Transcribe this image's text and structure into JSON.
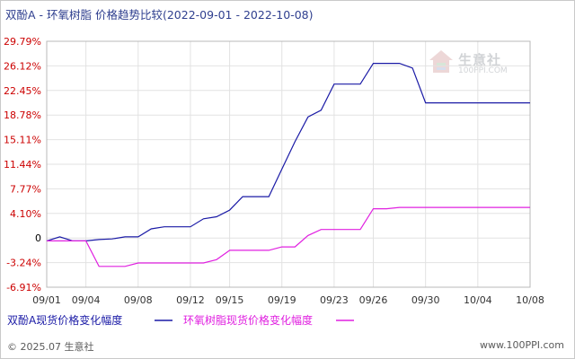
{
  "title": "双酚A - 环氧树脂 价格趋势比较(2022-09-01 - 2022-10-08)",
  "footer": {
    "copyright": "© 2025.07 生意社",
    "site": "www.100PPI.com"
  },
  "watermark": {
    "name": "生意社",
    "domain": "100PPI.COM"
  },
  "colors": {
    "series_a": "#1a1aa6",
    "series_b": "#e020e0",
    "tick_red": "#cc0000",
    "zero_black": "#000000"
  },
  "chart_data": {
    "type": "line",
    "ylabel_unit": "%",
    "y_ticks": [
      "29.79%",
      "26.12%",
      "22.45%",
      "18.78%",
      "15.11%",
      "11.44%",
      "7.77%",
      "4.10%",
      "0",
      "-3.24%",
      "-6.91%"
    ],
    "y_tick_values": [
      29.79,
      26.12,
      22.45,
      18.78,
      15.11,
      11.44,
      7.77,
      4.1,
      0.43,
      -3.24,
      -6.91
    ],
    "ylim": [
      -6.91,
      29.79
    ],
    "x_ticks": [
      "09/01",
      "09/04",
      "09/08",
      "09/12",
      "09/15",
      "09/19",
      "09/23",
      "09/26",
      "09/30",
      "10/04",
      "10/08"
    ],
    "x_tick_days": [
      1,
      4,
      8,
      12,
      15,
      19,
      23,
      26,
      30,
      34,
      38
    ],
    "xlim": [
      1,
      38
    ],
    "grid": true,
    "legend_position": "bottom",
    "series": [
      {
        "name": "双酚A现货价格变化幅度",
        "color": "#1a1aa6",
        "points": [
          [
            1,
            0.0
          ],
          [
            2,
            0.6
          ],
          [
            3,
            0.0
          ],
          [
            4,
            0.0
          ],
          [
            5,
            0.2
          ],
          [
            6,
            0.3
          ],
          [
            7,
            0.6
          ],
          [
            8,
            0.6
          ],
          [
            9,
            1.8
          ],
          [
            10,
            2.1
          ],
          [
            11,
            2.1
          ],
          [
            12,
            2.1
          ],
          [
            13,
            3.3
          ],
          [
            14,
            3.6
          ],
          [
            15,
            4.6
          ],
          [
            16,
            6.6
          ],
          [
            17,
            6.6
          ],
          [
            18,
            6.6
          ],
          [
            19,
            10.7
          ],
          [
            20,
            14.8
          ],
          [
            21,
            18.5
          ],
          [
            22,
            19.5
          ],
          [
            23,
            23.4
          ],
          [
            24,
            23.4
          ],
          [
            25,
            23.4
          ],
          [
            26,
            26.5
          ],
          [
            27,
            26.5
          ],
          [
            28,
            26.5
          ],
          [
            29,
            25.8
          ],
          [
            30,
            20.6
          ],
          [
            31,
            20.6
          ],
          [
            32,
            20.6
          ],
          [
            33,
            20.6
          ],
          [
            34,
            20.6
          ],
          [
            35,
            20.6
          ],
          [
            36,
            20.6
          ],
          [
            37,
            20.6
          ],
          [
            38,
            20.6
          ]
        ]
      },
      {
        "name": "环氧树脂现货价格变化幅度",
        "color": "#e020e0",
        "points": [
          [
            1,
            0.0
          ],
          [
            2,
            0.0
          ],
          [
            3,
            0.0
          ],
          [
            4,
            0.0
          ],
          [
            5,
            -3.8
          ],
          [
            6,
            -3.8
          ],
          [
            7,
            -3.8
          ],
          [
            8,
            -3.3
          ],
          [
            9,
            -3.3
          ],
          [
            10,
            -3.3
          ],
          [
            11,
            -3.3
          ],
          [
            12,
            -3.3
          ],
          [
            13,
            -3.3
          ],
          [
            14,
            -2.8
          ],
          [
            15,
            -1.4
          ],
          [
            16,
            -1.4
          ],
          [
            17,
            -1.4
          ],
          [
            18,
            -1.4
          ],
          [
            19,
            -0.9
          ],
          [
            20,
            -0.9
          ],
          [
            21,
            0.8
          ],
          [
            22,
            1.7
          ],
          [
            23,
            1.7
          ],
          [
            24,
            1.7
          ],
          [
            25,
            1.7
          ],
          [
            26,
            4.8
          ],
          [
            27,
            4.8
          ],
          [
            28,
            5.0
          ],
          [
            29,
            5.0
          ],
          [
            30,
            5.0
          ],
          [
            31,
            5.0
          ],
          [
            32,
            5.0
          ],
          [
            33,
            5.0
          ],
          [
            34,
            5.0
          ],
          [
            35,
            5.0
          ],
          [
            36,
            5.0
          ],
          [
            37,
            5.0
          ],
          [
            38,
            5.0
          ]
        ]
      }
    ]
  }
}
